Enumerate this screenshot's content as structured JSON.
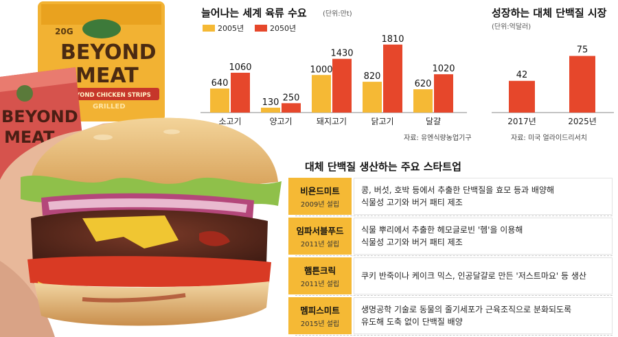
{
  "photo": {
    "package_brand_line1": "BEYOND",
    "package_brand_line2": "MEAT",
    "package_sub": "BEYOND CHICKEN STRIPS",
    "package_sub2": "GRILLED",
    "package_weight": "20G",
    "package_front_line1": "BEYOND",
    "package_front_line2": "MEAT"
  },
  "colors": {
    "y2005": "#f5b935",
    "y2050": "#e6472b",
    "market": "#e6472b"
  },
  "chart_data": [
    {
      "type": "bar",
      "title": "늘어나는 세계 육류 수요",
      "unit": "(단위:만t)",
      "categories": [
        "소고기",
        "양고기",
        "돼지고기",
        "닭고기",
        "달걀"
      ],
      "series": [
        {
          "name": "2005년",
          "values": [
            640,
            130,
            1000,
            820,
            620
          ]
        },
        {
          "name": "2050년",
          "values": [
            1060,
            250,
            1430,
            1810,
            1020
          ]
        }
      ],
      "ylim": [
        0,
        1900
      ],
      "legend": "top-left",
      "grid": false,
      "source": "자료: 유엔식량농업기구"
    },
    {
      "type": "bar",
      "title": "성장하는 대체 단백질 시장",
      "unit": "(단위:억달러)",
      "categories": [
        "2017년",
        "2025년"
      ],
      "values": [
        42,
        75
      ],
      "ylim": [
        0,
        100
      ],
      "grid": false,
      "source": "자료: 미국 얼라이드리서치"
    }
  ],
  "startups": {
    "title": "대체 단백질 생산하는 주요 스타트업",
    "items": [
      {
        "name": "비욘드미트",
        "founded": "2009년 설립",
        "desc1": "콩, 버섯, 호박 등에서 추출한 단백질을 효모 등과 배양해",
        "desc2": "식물성 고기와 버거 패티 제조"
      },
      {
        "name": "임파서블푸드",
        "founded": "2011년 설립",
        "desc1": "식물 뿌리에서 추출한 헤모글로빈 '헴'을 이용해",
        "desc2": "식물성 고기와 버거 패티 제조"
      },
      {
        "name": "햄튼크릭",
        "founded": "2011년 설립",
        "desc1": "쿠키 반죽이나 케이크 믹스, 인공달걀로 만든 '저스트마요' 등 생산",
        "desc2": ""
      },
      {
        "name": "멤피스미트",
        "founded": "2015년 설립",
        "desc1": "생명공학 기술로 동물의 줄기세포가 근육조직으로 분화되도록",
        "desc2": "유도해 도축 없이 단백질 배양"
      }
    ]
  }
}
